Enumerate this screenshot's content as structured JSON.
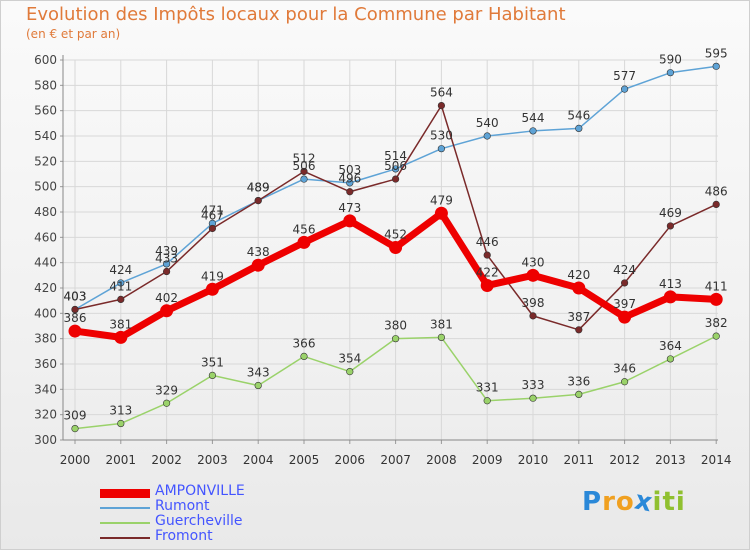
{
  "title": "Evolution des Impôts locaux pour la Commune par Habitant",
  "subtitle": "(en € et par an)",
  "brand": {
    "letters": [
      "P",
      "r",
      "o",
      "x",
      "i",
      "t",
      "i"
    ],
    "colors": [
      "#2a88d8",
      "#f0a020",
      "#f0a020",
      "#2a88d8",
      "#90c030",
      "#90c030",
      "#90c030"
    ]
  },
  "chart_data": {
    "type": "line",
    "title": "Evolution des Impôts locaux pour la Commune par Habitant",
    "subtitle": "(en € et par an)",
    "xlabel": "",
    "ylabel": "",
    "x": [
      "2000",
      "2001",
      "2002",
      "2003",
      "2004",
      "2005",
      "2006",
      "2007",
      "2008",
      "2009",
      "2010",
      "2011",
      "2012",
      "2013",
      "2014"
    ],
    "ylim": [
      300,
      600
    ],
    "yticks": [
      300,
      320,
      340,
      360,
      380,
      400,
      420,
      440,
      460,
      480,
      500,
      520,
      540,
      560,
      580,
      600
    ],
    "grid": true,
    "legend": "bottom-left",
    "series": [
      {
        "name": "AMPONVILLE",
        "color": "#ee0000",
        "emphasis": true,
        "values": [
          386,
          381,
          402,
          419,
          438,
          456,
          473,
          452,
          479,
          422,
          430,
          420,
          397,
          413,
          411
        ]
      },
      {
        "name": "Rumont",
        "color": "#5ea3d6",
        "emphasis": false,
        "values": [
          403,
          424,
          439,
          471,
          489,
          506,
          503,
          514,
          530,
          540,
          544,
          546,
          577,
          590,
          595
        ]
      },
      {
        "name": "Guercheville",
        "color": "#9ad26a",
        "emphasis": false,
        "values": [
          309,
          313,
          329,
          351,
          343,
          366,
          354,
          380,
          381,
          331,
          333,
          336,
          346,
          364,
          382
        ]
      },
      {
        "name": "Fromont",
        "color": "#7a2a2a",
        "emphasis": false,
        "values": [
          403,
          411,
          433,
          467,
          489,
          512,
          496,
          506,
          564,
          446,
          398,
          387,
          424,
          469,
          486
        ]
      }
    ]
  }
}
